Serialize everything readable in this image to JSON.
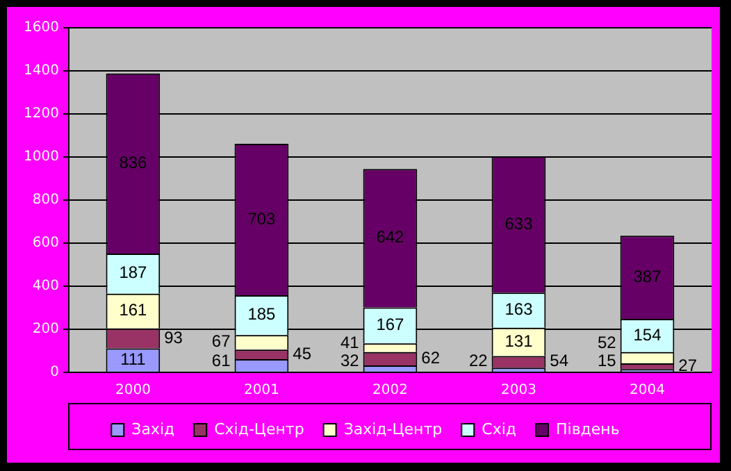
{
  "chart_data": {
    "type": "bar",
    "stacked": true,
    "categories": [
      "2000",
      "2001",
      "2002",
      "2003",
      "2004"
    ],
    "series": [
      {
        "name": "Захід",
        "color": "#9999ff",
        "values": [
          111,
          61,
          32,
          22,
          15
        ]
      },
      {
        "name": "Схід-Центр",
        "color": "#993366",
        "values": [
          93,
          45,
          62,
          54,
          27
        ]
      },
      {
        "name": "Захід-Центр",
        "color": "#ffffcc",
        "values": [
          161,
          67,
          41,
          131,
          52
        ]
      },
      {
        "name": "Схід",
        "color": "#ccffff",
        "values": [
          187,
          185,
          167,
          163,
          154
        ]
      },
      {
        "name": "Південь",
        "color": "#660066",
        "values": [
          836,
          703,
          642,
          633,
          387
        ]
      }
    ],
    "ylim": [
      0,
      1600
    ],
    "yticks": [
      0,
      200,
      400,
      600,
      800,
      1000,
      1200,
      1400,
      1600
    ],
    "grid": "y",
    "legend": "bottom",
    "data_labels": true
  }
}
